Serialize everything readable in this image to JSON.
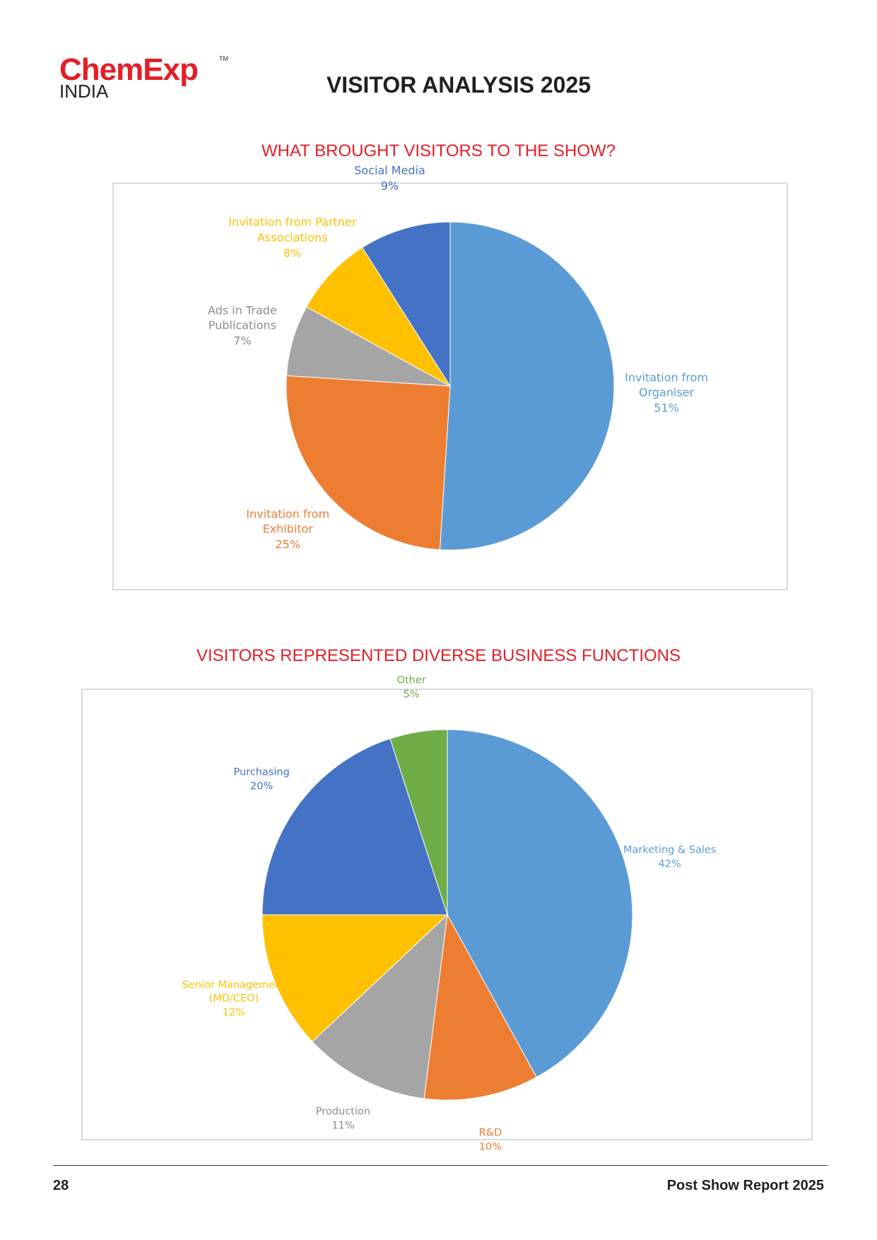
{
  "header": {
    "logo": "ChemExp",
    "logo_sub": "INDIA",
    "trademark": "TM",
    "title": "VISITOR ANALYSIS 2025"
  },
  "chart_data": [
    {
      "type": "pie",
      "title": "WHAT BROUGHT VISITORS TO THE SHOW?",
      "categories": [
        "Invitation from Organiser",
        "Invitation from Exhibitor",
        "Ads in Trade Publications",
        "Invitation from Partner Associations",
        "Social Media"
      ],
      "values": [
        51,
        25,
        7,
        8,
        9
      ],
      "value_labels": [
        "51%",
        "25%",
        "7%",
        "8%",
        "9%"
      ],
      "colors": [
        "#5b9bd5",
        "#ed7d31",
        "#a5a5a5",
        "#ffc000",
        "#4472c4"
      ]
    },
    {
      "type": "pie",
      "title": "VISITORS REPRESENTED DIVERSE BUSINESS FUNCTIONS",
      "categories": [
        "Marketing & Sales",
        "R&D",
        "Production",
        "Senior Management (MD/CEO)",
        "Purchasing",
        "Other"
      ],
      "values": [
        42,
        10,
        11,
        12,
        20,
        5
      ],
      "value_labels": [
        "42%",
        "10%",
        "11%",
        "12%",
        "20%",
        "5%"
      ],
      "colors": [
        "#5b9bd5",
        "#ed7d31",
        "#a5a5a5",
        "#ffc000",
        "#4472c4",
        "#70ad47"
      ]
    }
  ],
  "footer": {
    "page_number": "28",
    "report": "Post Show Report 2025"
  }
}
